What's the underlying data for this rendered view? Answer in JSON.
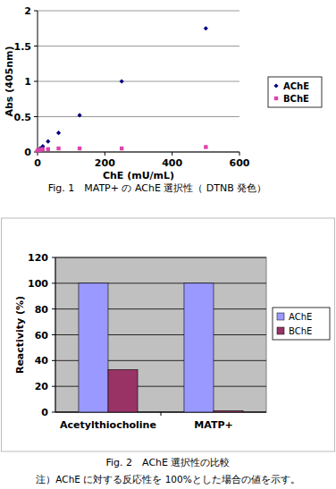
{
  "chart_data": [
    {
      "type": "scatter",
      "title": "Fig. 1　MATP+ の AChE 選択性（ DTNB 発色）",
      "x_label": "ChE (mU/mL)",
      "y_label": "Abs (405nm)",
      "x": [
        0,
        3.9,
        7.8,
        15.6,
        31.3,
        62.5,
        125,
        250,
        500
      ],
      "series": [
        {
          "name": "AChE",
          "color": "#000080",
          "marker": "diamond",
          "values": [
            0.02,
            0.03,
            0.05,
            0.08,
            0.15,
            0.27,
            0.52,
            1.0,
            1.75
          ]
        },
        {
          "name": "BChE",
          "color": "#dd44aa",
          "marker": "square",
          "values": [
            0.02,
            0.03,
            0.03,
            0.04,
            0.04,
            0.05,
            0.05,
            0.05,
            0.07
          ]
        }
      ],
      "xlim": [
        0,
        600
      ],
      "xticks": [
        0,
        200,
        400,
        600
      ],
      "ylim": [
        0,
        2
      ],
      "yticks": [
        0,
        0.5,
        1,
        1.5,
        2
      ],
      "grid": true,
      "legend": "right"
    },
    {
      "type": "bar",
      "title": "Fig. 2　AChE 選択性の比較",
      "annotations": [
        "注）AChE に対する反応性を 100%とした場合の値を示す。"
      ],
      "y_label": "Reactivity (%)",
      "categories": [
        "Acetylthiocholine",
        "MATP+"
      ],
      "series": [
        {
          "name": "AChE",
          "color": "#9999ff",
          "values": [
            100,
            100
          ]
        },
        {
          "name": "BChE",
          "color": "#993366",
          "values": [
            33,
            1
          ]
        }
      ],
      "ylim": [
        0,
        120
      ],
      "yticks": [
        0,
        20,
        40,
        60,
        80,
        100,
        120
      ],
      "grid": true,
      "legend": "right"
    }
  ]
}
